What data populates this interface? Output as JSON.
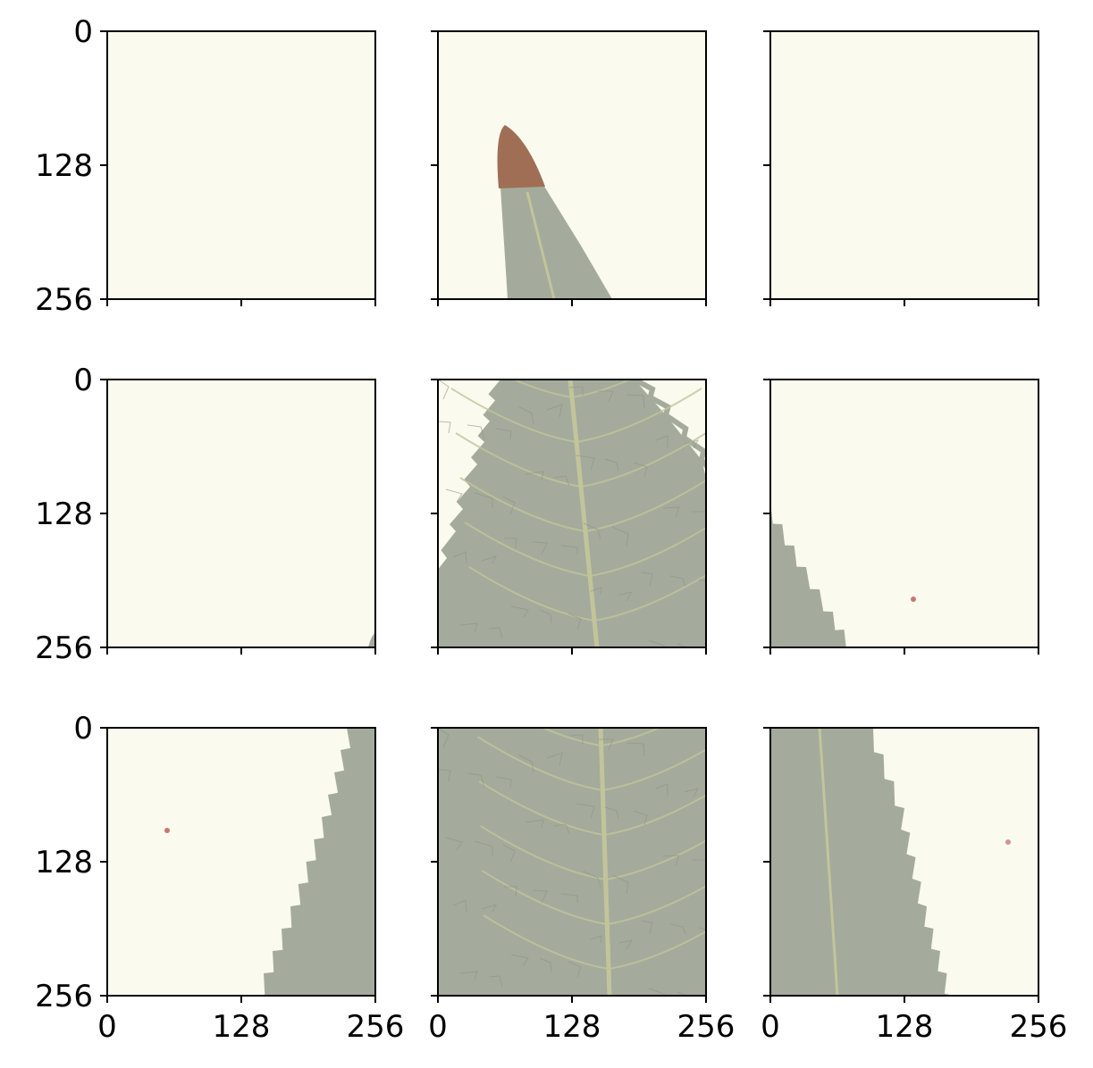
{
  "chart_data": {
    "type": "image-grid",
    "rows": 3,
    "cols": 3,
    "panel_extent": [
      0,
      256
    ],
    "x_ticks": [
      0,
      128,
      256
    ],
    "y_ticks": [
      0,
      128,
      256
    ],
    "x_tick_labels_on": "bottom-row",
    "y_tick_labels_on": "left-column",
    "grid": false,
    "colors": {
      "paper": "#fbfaef",
      "leaf": "#a4ab9c",
      "vein": "#c2c49a",
      "tip": "#a06e55",
      "axis": "#000000"
    },
    "panels": [
      {
        "row": 0,
        "col": 0,
        "content": "blank paper"
      },
      {
        "row": 0,
        "col": 1,
        "content": "leaf tip (brown) entering from bottom"
      },
      {
        "row": 0,
        "col": 2,
        "content": "blank paper"
      },
      {
        "row": 1,
        "col": 0,
        "content": "blank paper, tiny leaf edge bottom-right"
      },
      {
        "row": 1,
        "col": 1,
        "content": "leaf upper blade with serrated edges and midrib"
      },
      {
        "row": 1,
        "col": 2,
        "content": "serrated leaf edge at left"
      },
      {
        "row": 2,
        "col": 0,
        "content": "serrated leaf edge at right"
      },
      {
        "row": 2,
        "col": 1,
        "content": "leaf blade fully filling, midrib"
      },
      {
        "row": 2,
        "col": 2,
        "content": "serrated leaf edge at left"
      }
    ]
  }
}
